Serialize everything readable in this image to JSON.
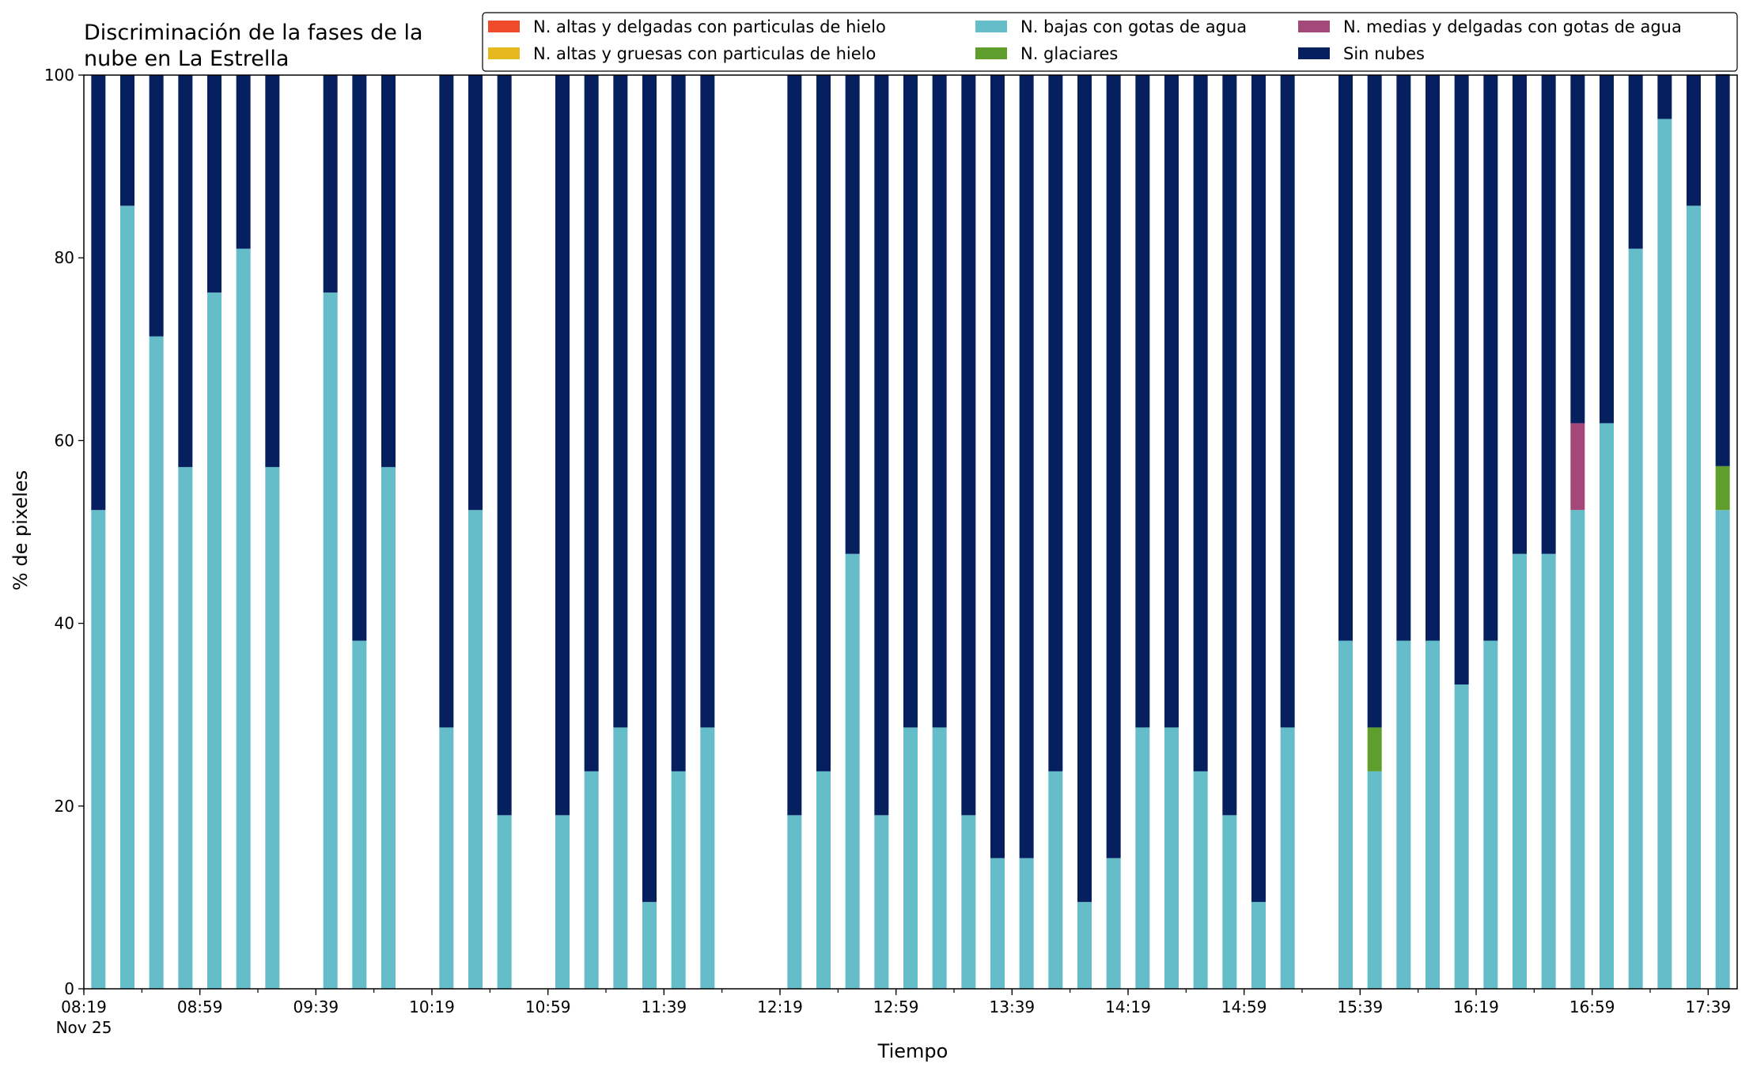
{
  "chart_data": {
    "type": "bar",
    "stacked": true,
    "title_lines": [
      "Discriminación de la fases de la",
      "nube en La Estrella"
    ],
    "xlabel": "Tiempo",
    "ylabel": "% de pixeles",
    "ylim": [
      0,
      100
    ],
    "yticks": [
      0,
      20,
      40,
      60,
      80,
      100
    ],
    "grid": false,
    "legend_position": "top-right",
    "x_range": [
      "08:19",
      "17:49"
    ],
    "x_major_ticks": [
      {
        "time": "08:19",
        "label": "08:19",
        "sublabel": "Nov 25"
      },
      {
        "time": "08:59",
        "label": "08:59"
      },
      {
        "time": "09:39",
        "label": "09:39"
      },
      {
        "time": "10:19",
        "label": "10:19"
      },
      {
        "time": "10:59",
        "label": "10:59"
      },
      {
        "time": "11:39",
        "label": "11:39"
      },
      {
        "time": "12:19",
        "label": "12:19"
      },
      {
        "time": "12:59",
        "label": "12:59"
      },
      {
        "time": "13:39",
        "label": "13:39"
      },
      {
        "time": "14:19",
        "label": "14:19"
      },
      {
        "time": "14:59",
        "label": "14:59"
      },
      {
        "time": "15:39",
        "label": "15:39"
      },
      {
        "time": "16:19",
        "label": "16:19"
      },
      {
        "time": "16:59",
        "label": "16:59"
      },
      {
        "time": "17:39",
        "label": "17:39"
      }
    ],
    "series": [
      {
        "name": "N. altas y delgadas con particulas de hielo",
        "color": "#ef4a2a"
      },
      {
        "name": "N. altas y gruesas con particulas de hielo",
        "color": "#e6b91e"
      },
      {
        "name": "N. bajas con gotas de agua",
        "color": "#66bdca"
      },
      {
        "name": "N. glaciares",
        "color": "#5f9e2c"
      },
      {
        "name": "N. medias y delgadas con gotas de agua",
        "color": "#a4487a"
      },
      {
        "name": "Sin nubes",
        "color": "#061f5e"
      }
    ],
    "bars": [
      {
        "time": "08:24",
        "values": [
          0,
          0,
          52.4,
          0,
          0,
          47.6
        ]
      },
      {
        "time": "08:34",
        "values": [
          0,
          0,
          85.7,
          0,
          0,
          14.3
        ]
      },
      {
        "time": "08:44",
        "values": [
          0,
          0,
          71.4,
          0,
          0,
          28.6
        ]
      },
      {
        "time": "08:54",
        "values": [
          0,
          0,
          57.1,
          0,
          0,
          42.9
        ]
      },
      {
        "time": "09:04",
        "values": [
          0,
          0,
          76.2,
          0,
          0,
          23.8
        ]
      },
      {
        "time": "09:14",
        "values": [
          0,
          0,
          81.0,
          0,
          0,
          19.0
        ]
      },
      {
        "time": "09:24",
        "values": [
          0,
          0,
          57.1,
          0,
          0,
          42.9
        ]
      },
      {
        "time": "09:44",
        "values": [
          0,
          0,
          76.2,
          0,
          0,
          23.8
        ]
      },
      {
        "time": "09:54",
        "values": [
          0,
          0,
          38.1,
          0,
          0,
          61.9
        ]
      },
      {
        "time": "10:04",
        "values": [
          0,
          0,
          57.1,
          0,
          0,
          42.9
        ]
      },
      {
        "time": "10:24",
        "values": [
          0,
          0,
          28.6,
          0,
          0,
          71.4
        ]
      },
      {
        "time": "10:34",
        "values": [
          0,
          0,
          52.4,
          0,
          0,
          47.6
        ]
      },
      {
        "time": "10:44",
        "values": [
          0,
          0,
          19.0,
          0,
          0,
          81.0
        ]
      },
      {
        "time": "11:04",
        "values": [
          0,
          0,
          19.0,
          0,
          0,
          81.0
        ]
      },
      {
        "time": "11:14",
        "values": [
          0,
          0,
          23.8,
          0,
          0,
          76.2
        ]
      },
      {
        "time": "11:24",
        "values": [
          0,
          0,
          28.6,
          0,
          0,
          71.4
        ]
      },
      {
        "time": "11:34",
        "values": [
          0,
          0,
          9.5,
          0,
          0,
          90.5
        ]
      },
      {
        "time": "11:44",
        "values": [
          0,
          0,
          23.8,
          0,
          0,
          76.2
        ]
      },
      {
        "time": "11:54",
        "values": [
          0,
          0,
          28.6,
          0,
          0,
          71.4
        ]
      },
      {
        "time": "12:24",
        "values": [
          0,
          0,
          19.0,
          0,
          0,
          81.0
        ]
      },
      {
        "time": "12:34",
        "values": [
          0,
          0,
          23.8,
          0,
          0,
          76.2
        ]
      },
      {
        "time": "12:44",
        "values": [
          0,
          0,
          47.6,
          0,
          0,
          52.4
        ]
      },
      {
        "time": "12:54",
        "values": [
          0,
          0,
          19.0,
          0,
          0,
          81.0
        ]
      },
      {
        "time": "13:04",
        "values": [
          0,
          0,
          28.6,
          0,
          0,
          71.4
        ]
      },
      {
        "time": "13:14",
        "values": [
          0,
          0,
          28.6,
          0,
          0,
          71.4
        ]
      },
      {
        "time": "13:24",
        "values": [
          0,
          0,
          19.0,
          0,
          0,
          81.0
        ]
      },
      {
        "time": "13:34",
        "values": [
          0,
          0,
          14.3,
          0,
          0,
          85.7
        ]
      },
      {
        "time": "13:44",
        "values": [
          0,
          0,
          14.3,
          0,
          0,
          85.7
        ]
      },
      {
        "time": "13:54",
        "values": [
          0,
          0,
          23.8,
          0,
          0,
          76.2
        ]
      },
      {
        "time": "14:04",
        "values": [
          0,
          0,
          9.5,
          0,
          0,
          90.5
        ]
      },
      {
        "time": "14:14",
        "values": [
          0,
          0,
          14.3,
          0,
          0,
          85.7
        ]
      },
      {
        "time": "14:24",
        "values": [
          0,
          0,
          28.6,
          0,
          0,
          71.4
        ]
      },
      {
        "time": "14:34",
        "values": [
          0,
          0,
          28.6,
          0,
          0,
          71.4
        ]
      },
      {
        "time": "14:44",
        "values": [
          0,
          0,
          23.8,
          0,
          0,
          76.2
        ]
      },
      {
        "time": "14:54",
        "values": [
          0,
          0,
          19.0,
          0,
          0,
          81.0
        ]
      },
      {
        "time": "15:04",
        "values": [
          0,
          0,
          9.5,
          0,
          0,
          90.5
        ]
      },
      {
        "time": "15:14",
        "values": [
          0,
          0,
          28.6,
          0,
          0,
          71.4
        ]
      },
      {
        "time": "15:34",
        "values": [
          0,
          0,
          38.1,
          0,
          0,
          61.9
        ]
      },
      {
        "time": "15:44",
        "values": [
          0,
          0,
          23.8,
          4.8,
          0,
          71.4
        ]
      },
      {
        "time": "15:54",
        "values": [
          0,
          0,
          38.1,
          0,
          0,
          61.9
        ]
      },
      {
        "time": "16:04",
        "values": [
          0,
          0,
          38.1,
          0,
          0,
          61.9
        ]
      },
      {
        "time": "16:14",
        "values": [
          0,
          0,
          33.3,
          0,
          0,
          66.7
        ]
      },
      {
        "time": "16:24",
        "values": [
          0,
          0,
          38.1,
          0,
          0,
          61.9
        ]
      },
      {
        "time": "16:34",
        "values": [
          0,
          0,
          47.6,
          0,
          0,
          52.4
        ]
      },
      {
        "time": "16:44",
        "values": [
          0,
          0,
          47.6,
          0,
          0,
          52.4
        ]
      },
      {
        "time": "16:54",
        "values": [
          0,
          0,
          52.4,
          0,
          9.5,
          38.1
        ]
      },
      {
        "time": "17:04",
        "values": [
          0,
          0,
          61.9,
          0,
          0,
          38.1
        ]
      },
      {
        "time": "17:14",
        "values": [
          0,
          0,
          81.0,
          0,
          0,
          19.0
        ]
      },
      {
        "time": "17:24",
        "values": [
          0,
          0,
          95.2,
          0,
          0,
          4.8
        ]
      },
      {
        "time": "17:34",
        "values": [
          0,
          0,
          85.7,
          0,
          0,
          14.3
        ]
      },
      {
        "time": "17:44",
        "values": [
          0,
          0,
          52.4,
          4.8,
          0,
          42.9
        ]
      }
    ]
  }
}
